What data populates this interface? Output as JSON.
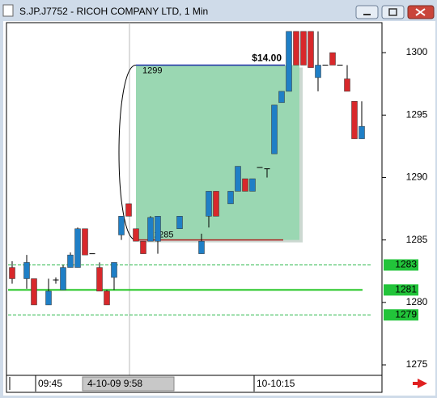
{
  "chart_data": {
    "type": "candlestick",
    "title": "S.JP.J7752 - RICOH COMPANY LTD, 1 Min",
    "categories": [
      null,
      null,
      null,
      "09:45",
      null,
      null,
      null,
      null,
      null,
      null,
      null,
      null,
      null,
      null,
      null,
      null,
      "4-10-09  9:58",
      null,
      null,
      null,
      null,
      null,
      null,
      null,
      null,
      null,
      null,
      null,
      null,
      null,
      null,
      null,
      null,
      "10-10:15",
      null,
      null,
      null,
      null,
      null,
      null,
      null,
      null,
      null,
      null,
      null,
      null,
      null,
      null,
      null
    ],
    "open": [
      1282.8,
      null,
      1281.9,
      1281.9,
      null,
      1279.8,
      1281.8,
      1281.0,
      1282.8,
      1282.8,
      1285.9,
      1283.9,
      1282.8,
      1280.9,
      1282.0,
      1285.4,
      1287.9,
      1285.9,
      1284.9,
      1284.9,
      1284.9,
      null,
      null,
      1285.9,
      null,
      null,
      1283.9,
      1286.9,
      1288.9,
      null,
      1287.9,
      1288.9,
      1289.9,
      1288.9,
      1290.8,
      1290.7,
      1291.9,
      1296.0,
      1296.9,
      1301.7,
      1301.7,
      1301.7,
      1298.0,
      1299.0,
      1300.0,
      1299.0,
      1297.9,
      1296.1,
      1293.1
    ],
    "high": [
      1283.3,
      null,
      1283.8,
      1281.9,
      null,
      1281.9,
      1282.0,
      1283.0,
      1284.0,
      1286.0,
      1285.9,
      1283.9,
      1283.2,
      1281.0,
      1283.2,
      1286.9,
      1287.9,
      1285.9,
      1284.9,
      1286.9,
      1286.9,
      null,
      null,
      1286.9,
      null,
      null,
      1285.5,
      1288.9,
      1288.9,
      null,
      1288.9,
      1290.9,
      1289.9,
      1289.9,
      1290.8,
      1290.7,
      1295.8,
      1296.9,
      1301.7,
      1301.7,
      1301.7,
      1301.7,
      1301.7,
      1299.0,
      1300.0,
      1299.0,
      1299.0,
      1296.1,
      1296.1
    ],
    "low": [
      1281.5,
      null,
      1281.1,
      1279.8,
      null,
      1279.8,
      1281.5,
      1281.0,
      1282.8,
      1282.8,
      1283.8,
      1283.9,
      1280.9,
      1279.8,
      1281.0,
      1285.0,
      1286.9,
      1284.9,
      1283.9,
      1284.9,
      1283.9,
      null,
      null,
      1285.9,
      null,
      null,
      1283.9,
      1286.0,
      1286.9,
      null,
      1287.9,
      1288.9,
      1288.9,
      1288.9,
      1290.8,
      1290.0,
      1291.9,
      1296.0,
      1296.9,
      1299.0,
      1299.0,
      1298.8,
      1296.9,
      1299.0,
      1299.0,
      1299.0,
      1296.9,
      1293.1,
      1293.1
    ],
    "close": [
      1281.9,
      null,
      1283.2,
      1279.8,
      null,
      1280.9,
      1281.8,
      1282.8,
      1283.8,
      1285.9,
      1283.8,
      1283.9,
      1280.9,
      1279.8,
      1283.2,
      1286.9,
      1286.9,
      1284.9,
      1283.9,
      1286.8,
      1286.9,
      null,
      null,
      1286.9,
      null,
      null,
      1284.9,
      1288.9,
      1286.9,
      null,
      1288.9,
      1290.9,
      1288.9,
      1289.9,
      1290.8,
      1290.7,
      1295.8,
      1296.9,
      1301.7,
      1299.0,
      1299.0,
      1298.8,
      1299.0,
      1299.0,
      1299.0,
      1299.0,
      1296.9,
      1293.1,
      1294.1
    ],
    "up_color": "#1f7fc6",
    "down_color": "#d8282b",
    "ylim": [
      1274.16,
      1302.4
    ],
    "yticks": [
      1275,
      1280,
      1285,
      1290,
      1295,
      1300
    ],
    "levels": [
      {
        "value": 1283,
        "style": "dashed"
      },
      {
        "value": 1281,
        "style": "solid"
      },
      {
        "value": 1279,
        "style": "dashed"
      }
    ],
    "trade": {
      "entry": 1285,
      "exit": 1299,
      "profit_label": "$14.00"
    }
  }
}
